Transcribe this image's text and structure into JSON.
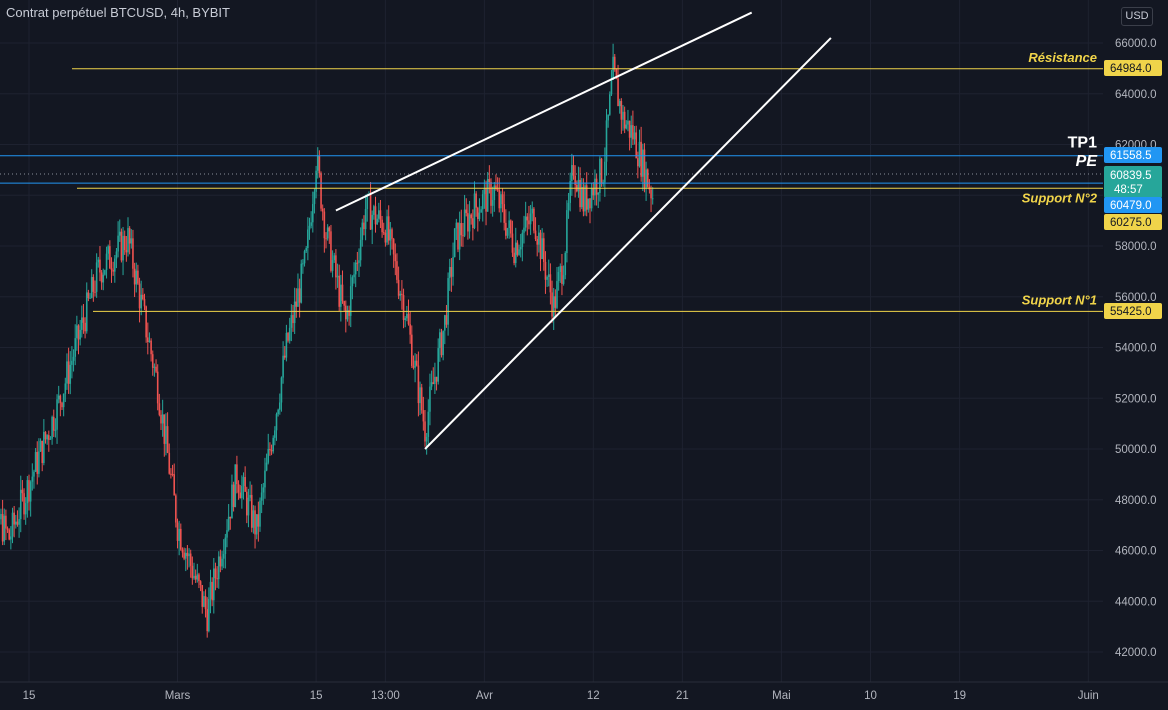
{
  "header": {
    "title": "Contrat perpétuel BTCUSD, 4h, BYBIT",
    "currency": "USD"
  },
  "colors": {
    "background": "#131722",
    "up": "#26a69a",
    "down": "#ef5350",
    "gold": "#f0d44a",
    "blue": "#2962ff",
    "tag_blue": "#2196f3",
    "tag_green": "#26a69a",
    "white": "#ffffff"
  },
  "chart_data": {
    "type": "candlestick",
    "symbol": "Contrat perpétuel BTCUSD",
    "interval": "4h",
    "exchange": "BYBIT",
    "y_ticks": [
      42000,
      44000,
      46000,
      48000,
      50000,
      52000,
      54000,
      56000,
      58000,
      60000,
      62000,
      64000,
      66000
    ],
    "y_tick_labels": [
      "42000.0",
      "44000.0",
      "46000.0",
      "48000.0",
      "50000.0",
      "52000.0",
      "54000.0",
      "56000.0",
      "58000.0",
      "60000.0",
      "62000.0",
      "64000.0",
      "66000.0"
    ],
    "x_tick_labels": [
      "15",
      "Mars",
      "15",
      "13:00",
      "Avr",
      "12",
      "21",
      "Mai",
      "10",
      "19",
      "Juin"
    ],
    "ylim": [
      41000,
      67000
    ],
    "price_anchors": [
      {
        "date": "2024-02-10",
        "price": 48500
      },
      {
        "date": "2024-02-13",
        "price": 46500
      },
      {
        "date": "2024-02-18",
        "price": 51800
      },
      {
        "date": "2024-02-22",
        "price": 57000
      },
      {
        "date": "2024-02-25",
        "price": 58300
      },
      {
        "date": "2024-02-28",
        "price": 52500
      },
      {
        "date": "2024-03-01",
        "price": 47000
      },
      {
        "date": "2024-03-04",
        "price": 43500
      },
      {
        "date": "2024-03-07",
        "price": 49000
      },
      {
        "date": "2024-03-09",
        "price": 46800
      },
      {
        "date": "2024-03-12",
        "price": 54000
      },
      {
        "date": "2024-03-14",
        "price": 57500
      },
      {
        "date": "2024-03-15",
        "price": 61500
      },
      {
        "date": "2024-03-16",
        "price": 58500
      },
      {
        "date": "2024-03-18",
        "price": 55000
      },
      {
        "date": "2024-03-20",
        "price": 59500
      },
      {
        "date": "2024-03-22",
        "price": 58800
      },
      {
        "date": "2024-03-24",
        "price": 55500
      },
      {
        "date": "2024-03-26",
        "price": 50800
      },
      {
        "date": "2024-03-28",
        "price": 55000
      },
      {
        "date": "2024-03-29",
        "price": 58200
      },
      {
        "date": "2024-03-31",
        "price": 59500
      },
      {
        "date": "2024-04-02",
        "price": 60200
      },
      {
        "date": "2024-04-04",
        "price": 58000
      },
      {
        "date": "2024-04-06",
        "price": 59200
      },
      {
        "date": "2024-04-08",
        "price": 55600
      },
      {
        "date": "2024-04-09",
        "price": 57500
      },
      {
        "date": "2024-04-10",
        "price": 61200
      },
      {
        "date": "2024-04-11",
        "price": 59700
      },
      {
        "date": "2024-04-13",
        "price": 61000
      },
      {
        "date": "2024-04-14",
        "price": 64800
      },
      {
        "date": "2024-04-15",
        "price": 63000
      },
      {
        "date": "2024-04-16",
        "price": 62400
      },
      {
        "date": "2024-04-17",
        "price": 61200
      },
      {
        "date": "2024-04-18",
        "price": 60000
      }
    ],
    "horizontal_levels": [
      {
        "name": "Résistance",
        "value": 64984.0,
        "label": "Résistance",
        "tag": "64984.0",
        "color": "gold"
      },
      {
        "name": "TP1",
        "value": 61558.5,
        "label": "TP1",
        "tag": "61558.5",
        "color": "blue"
      },
      {
        "name": "PE",
        "value": 60839.5,
        "label": "PE",
        "tag": "60839.5",
        "countdown": "48:57",
        "color": "green"
      },
      {
        "name": "Support N°2 (bleu)",
        "value": 60479.0,
        "tag": "60479.0",
        "color": "blue"
      },
      {
        "name": "Support N°2",
        "value": 60275.0,
        "label": "Support N°2",
        "tag": "60275.0",
        "color": "gold"
      },
      {
        "name": "Support N°1",
        "value": 55425.0,
        "label": "Support N°1",
        "tag": "55425.0",
        "color": "gold"
      }
    ],
    "trend_lines": [
      {
        "name": "upper-wedge-line",
        "from": {
          "date": "2024-03-17",
          "price": 59400
        },
        "to": {
          "date": "2024-04-28",
          "price": 67200
        }
      },
      {
        "name": "lower-wedge-line",
        "from": {
          "date": "2024-03-26",
          "price": 50000
        },
        "to": {
          "date": "2024-05-06",
          "price": 66200
        }
      }
    ]
  }
}
